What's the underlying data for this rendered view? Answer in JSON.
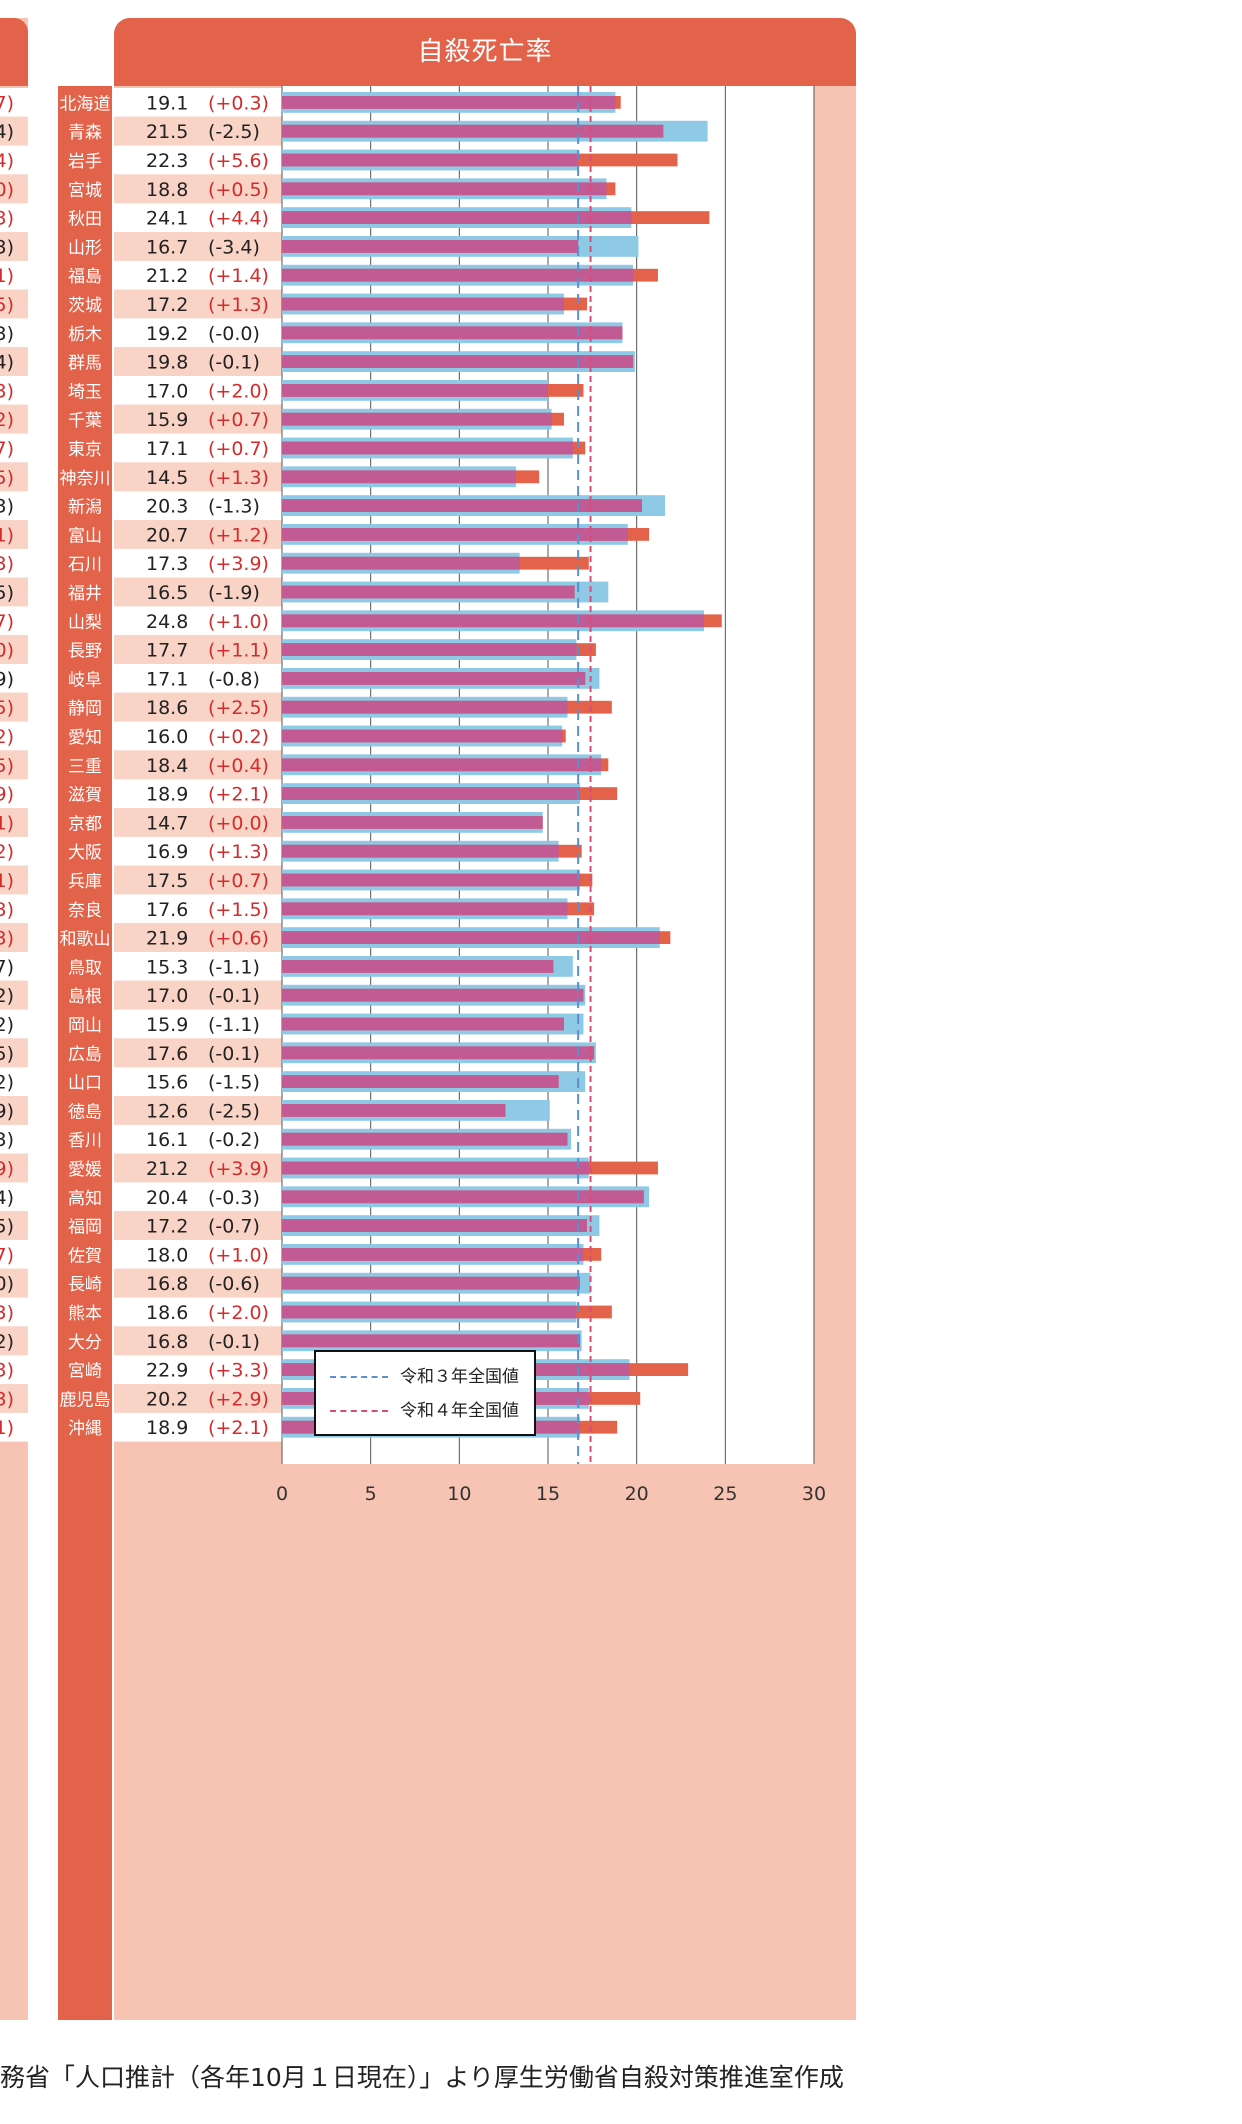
{
  "chart_data": {
    "type": "bar",
    "title": "自殺死亡率",
    "orientation": "horizontal",
    "xlim": [
      0,
      30
    ],
    "x_ticks": [
      "0",
      "5",
      "10",
      "15",
      "20",
      "25",
      "30"
    ],
    "categories": [
      "北海道",
      "青森",
      "岩手",
      "宮城",
      "秋田",
      "山形",
      "福島",
      "茨城",
      "栃木",
      "群馬",
      "埼玉",
      "千葉",
      "東京",
      "神奈川",
      "新潟",
      "富山",
      "石川",
      "福井",
      "山梨",
      "長野",
      "岐阜",
      "静岡",
      "愛知",
      "三重",
      "滋賀",
      "京都",
      "大阪",
      "兵庫",
      "奈良",
      "和歌山",
      "鳥取",
      "島根",
      "岡山",
      "広島",
      "山口",
      "徳島",
      "香川",
      "愛媛",
      "高知",
      "福岡",
      "佐賀",
      "長崎",
      "熊本",
      "大分",
      "宮崎",
      "鹿児島",
      "沖縄"
    ],
    "values_r4": [
      19.1,
      21.5,
      22.3,
      18.8,
      24.1,
      16.7,
      21.2,
      17.2,
      19.2,
      19.8,
      17.0,
      15.9,
      17.1,
      14.5,
      20.3,
      20.7,
      17.3,
      16.5,
      24.8,
      17.7,
      17.1,
      18.6,
      16.0,
      18.4,
      18.9,
      14.7,
      16.9,
      17.5,
      17.6,
      21.9,
      15.3,
      17.0,
      15.9,
      17.6,
      15.6,
      12.6,
      16.1,
      21.2,
      20.4,
      17.2,
      18.0,
      16.8,
      18.6,
      16.8,
      22.9,
      20.2,
      18.9
    ],
    "value_labels": [
      "19.1",
      "21.5",
      "22.3",
      "18.8",
      "24.1",
      "16.7",
      "21.2",
      "17.2",
      "19.2",
      "19.8",
      "17.0",
      "15.9",
      "17.1",
      "14.5",
      "20.3",
      "20.7",
      "17.3",
      "16.5",
      "24.8",
      "17.7",
      "17.1",
      "18.6",
      "16.0",
      "18.4",
      "18.9",
      "14.7",
      "16.9",
      "17.5",
      "17.6",
      "21.9",
      "15.3",
      "17.0",
      "15.9",
      "17.6",
      "15.6",
      "12.6",
      "16.1",
      "21.2",
      "20.4",
      "17.2",
      "18.0",
      "16.8",
      "18.6",
      "16.8",
      "22.9",
      "20.2",
      "18.9"
    ],
    "change_labels": [
      "(+0.3)",
      "(-2.5)",
      "(+5.6)",
      "(+0.5)",
      "(+4.4)",
      "(-3.4)",
      "(+1.4)",
      "(+1.3)",
      "(-0.0)",
      "(-0.1)",
      "(+2.0)",
      "(+0.7)",
      "(+0.7)",
      "(+1.3)",
      "(-1.3)",
      "(+1.2)",
      "(+3.9)",
      "(-1.9)",
      "(+1.0)",
      "(+1.1)",
      "(-0.8)",
      "(+2.5)",
      "(+0.2)",
      "(+0.4)",
      "(+2.1)",
      "(+0.0)",
      "(+1.3)",
      "(+0.7)",
      "(+1.5)",
      "(+0.6)",
      "(-1.1)",
      "(-0.1)",
      "(-1.1)",
      "(-0.1)",
      "(-1.5)",
      "(-2.5)",
      "(-0.2)",
      "(+3.9)",
      "(-0.3)",
      "(-0.7)",
      "(+1.0)",
      "(-0.6)",
      "(+2.0)",
      "(-0.1)",
      "(+3.3)",
      "(+2.9)",
      "(+2.1)"
    ],
    "left_cut_labels": [
      "7)",
      "4)",
      "4)",
      "0)",
      "3)",
      "3)",
      "1)",
      "5)",
      "3)",
      "4)",
      "3)",
      "2)",
      "7)",
      "5)",
      "3)",
      "1)",
      "3)",
      "5)",
      "7)",
      "0)",
      "9)",
      "5)",
      "2)",
      "5)",
      "9)",
      "1)",
      "2)",
      "1)",
      "3)",
      "3)",
      "7)",
      "2)",
      "2)",
      "5)",
      "2)",
      "9)",
      "3)",
      "9)",
      "4)",
      "5)",
      "7)",
      "0)",
      "3)",
      "2)",
      "3)",
      "3)",
      "1)"
    ],
    "reference_lines": [
      {
        "name": "令和３年全国値",
        "value": 16.7,
        "style": "dashed",
        "color": "#5b8fd0"
      },
      {
        "name": "令和４年全国値",
        "value": 17.4,
        "style": "dashed",
        "color": "#dc4b78"
      }
    ],
    "colors": {
      "header": "#e2624a",
      "panel": "#f7c3b3",
      "bar_r3": "#8ec9e6",
      "bar_r4": "#e2624a",
      "overlap": "#c25b94",
      "increase_text": "#d42c2c",
      "decrease_text": "#222222"
    },
    "legend_position": "bottom-center",
    "grid": true
  },
  "legend": {
    "items": [
      {
        "label": "令和３年全国値"
      },
      {
        "label": "令和４年全国値"
      }
    ]
  },
  "source_note": "務省「人口推計（各年10月１日現在）」より厚生労働省自殺対策推進室作成"
}
